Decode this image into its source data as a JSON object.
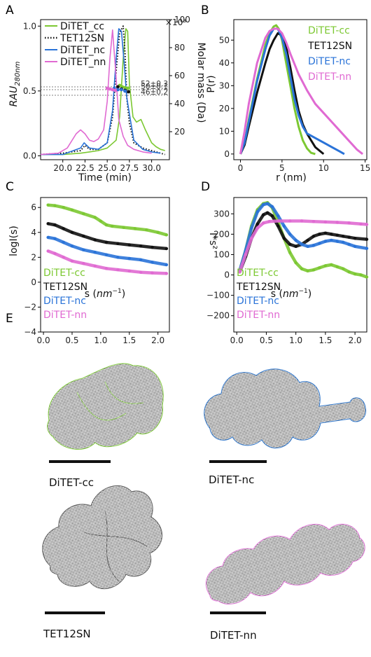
{
  "panel_labels": [
    "A",
    "B",
    "C",
    "D",
    "E"
  ],
  "colors": {
    "cc": "#7cc832",
    "sn": "#111111",
    "nc": "#2a73d8",
    "nn": "#e06ad2"
  },
  "chart_data": [
    {
      "id": "A",
      "type": "line",
      "title": "",
      "xlabel": "Time (min)",
      "ylabel": "RAU280nm",
      "ylabel_base": "RAU",
      "ylabel_sub": "280nm",
      "y2label": "Molar mass (Da)",
      "y2_multiplier": "×10³",
      "xlim": [
        17.5,
        32
      ],
      "ylim": [
        -0.03,
        1.05
      ],
      "y2lim": [
        0,
        100
      ],
      "xticks": [
        "20.0",
        "22.5",
        "25.0",
        "27.5",
        "30.0"
      ],
      "yticks": [
        "0.0",
        "0.5",
        "1.0"
      ],
      "y2ticks": [
        "20",
        "40",
        "60",
        "80",
        "100"
      ],
      "legend": [
        "DiTET_cc",
        "TET12SN",
        "DiTET_nc",
        "DiTET_nn"
      ],
      "legend_position": "top-left",
      "annotations": [
        "52±0.3",
        "50±0.1",
        "46±0.2"
      ],
      "annotation_levels": [
        52,
        50,
        46
      ],
      "series": [
        {
          "name": "DiTET_cc",
          "style": "solid",
          "x": [
            17.5,
            20,
            22,
            23,
            24,
            25,
            26,
            26.4,
            26.8,
            27.1,
            27.3,
            27.5,
            27.9,
            28.3,
            28.8,
            29.3,
            30,
            30.5,
            31,
            31.5
          ],
          "y": [
            0.01,
            0.01,
            0.02,
            0.03,
            0.04,
            0.06,
            0.12,
            0.3,
            0.75,
            0.98,
            0.96,
            0.55,
            0.3,
            0.26,
            0.28,
            0.2,
            0.1,
            0.07,
            0.05,
            0.04
          ]
        },
        {
          "name": "TET12SN",
          "style": "dotted",
          "x": [
            17.5,
            20,
            22,
            22.5,
            23,
            24,
            25,
            25.6,
            26,
            26.4,
            26.8,
            27,
            27.2,
            27.5,
            28,
            29,
            30,
            31,
            31.5
          ],
          "y": [
            0.01,
            0.02,
            0.04,
            0.08,
            0.05,
            0.05,
            0.1,
            0.3,
            0.65,
            0.95,
            1.0,
            0.8,
            0.45,
            0.25,
            0.1,
            0.06,
            0.04,
            0.02,
            0.01
          ]
        },
        {
          "name": "DiTET_nc",
          "style": "solid",
          "x": [
            17.5,
            20,
            22,
            22.4,
            23,
            24,
            25,
            25.6,
            26,
            26.3,
            26.6,
            26.9,
            27.2,
            27.6,
            28,
            29,
            30,
            31
          ],
          "y": [
            0.01,
            0.01,
            0.06,
            0.1,
            0.06,
            0.05,
            0.1,
            0.35,
            0.75,
            0.98,
            0.96,
            0.72,
            0.45,
            0.28,
            0.12,
            0.05,
            0.03,
            0.02
          ]
        },
        {
          "name": "DiTET_nn",
          "style": "solid",
          "x": [
            17.5,
            19.5,
            20.5,
            21.5,
            22,
            22.5,
            23,
            23.5,
            24,
            24.6,
            25,
            25.3,
            25.6,
            26,
            26.3,
            26.8,
            27.3,
            28,
            29,
            30
          ],
          "y": [
            0.01,
            0.02,
            0.06,
            0.17,
            0.2,
            0.17,
            0.12,
            0.11,
            0.13,
            0.2,
            0.42,
            0.75,
            0.97,
            0.6,
            0.28,
            0.15,
            0.08,
            0.05,
            0.03,
            0.02
          ]
        }
      ],
      "mass_series": [
        {
          "name": "DiTET_cc",
          "x": [
            26.4,
            26.7,
            27,
            27.3
          ],
          "y": [
            53,
            52,
            51.5,
            51
          ]
        },
        {
          "name": "TET12SN",
          "x": [
            26.2,
            26.6,
            27,
            27.4
          ],
          "y": [
            52,
            50.5,
            49.5,
            48.5
          ]
        },
        {
          "name": "DiTET_nc",
          "x": [
            25.8,
            26.2,
            26.6,
            27
          ],
          "y": [
            51,
            50,
            50,
            49
          ]
        },
        {
          "name": "DiTET_nn",
          "x": [
            25,
            25.3,
            25.6,
            25.9
          ],
          "y": [
            51,
            50.5,
            50,
            49.5
          ]
        }
      ]
    },
    {
      "id": "B",
      "type": "line",
      "title": "",
      "xlabel": "r (nm)",
      "ylabel": "P(r)",
      "xlim": [
        -0.8,
        15.2
      ],
      "ylim": [
        -2.5,
        59
      ],
      "xticks": [
        "0",
        "5",
        "10",
        "15"
      ],
      "yticks": [
        "0",
        "10",
        "20",
        "30",
        "40",
        "50"
      ],
      "legend": [
        "DiTET-cc",
        "TET12SN",
        "DiTET-nc",
        "DiTET-nn"
      ],
      "legend_position": "top-right",
      "series": [
        {
          "name": "DiTET-cc",
          "x": [
            0,
            0.5,
            1,
            2,
            3,
            3.5,
            4,
            4.3,
            4.6,
            5,
            5.5,
            6,
            6.5,
            7,
            7.5,
            8,
            8.5,
            9
          ],
          "y": [
            0,
            5,
            15,
            33,
            48,
            53,
            56,
            56.5,
            55,
            50,
            40,
            30,
            20,
            12,
            6,
            2.5,
            0.5,
            0
          ]
        },
        {
          "name": "TET12SN",
          "x": [
            0,
            0.5,
            1,
            2,
            3,
            3.5,
            4,
            4.5,
            5,
            5.5,
            6,
            6.5,
            7,
            7.5,
            8,
            8.5,
            9,
            9.5,
            10
          ],
          "y": [
            0,
            4,
            12,
            27,
            40,
            46,
            50,
            53,
            52,
            47,
            38,
            28,
            19,
            13,
            9,
            6,
            3,
            1.5,
            0
          ]
        },
        {
          "name": "DiTET-nc",
          "x": [
            0,
            0.5,
            1,
            2,
            3,
            3.5,
            4,
            4.5,
            5,
            5.5,
            6,
            6.5,
            7,
            7.5,
            8,
            9,
            10,
            11,
            12,
            12.5
          ],
          "y": [
            0,
            5,
            14,
            32,
            46,
            52,
            55,
            55,
            51,
            44,
            34,
            24,
            17,
            12,
            9,
            7,
            5,
            3,
            1,
            0
          ]
        },
        {
          "name": "DiTET-nn",
          "x": [
            0,
            0.5,
            1,
            2,
            3,
            3.5,
            4,
            4.5,
            5,
            5.5,
            6,
            7,
            8,
            9,
            10,
            11,
            12,
            13,
            14,
            14.7
          ],
          "y": [
            0,
            10,
            22,
            40,
            51,
            54,
            55,
            55,
            53,
            49,
            44,
            35,
            28,
            22,
            18,
            14,
            10,
            6,
            2,
            0
          ]
        }
      ]
    },
    {
      "id": "C",
      "type": "scatter",
      "title": "",
      "xlabel": "s (nm⁻¹)",
      "ylabel": "logI(s)",
      "xlim": [
        -0.05,
        2.2
      ],
      "ylim": [
        -4,
        6.8
      ],
      "xticks": [
        "0.0",
        "0.5",
        "1.0",
        "1.5",
        "2.0"
      ],
      "yticks": [
        "−4",
        "−2",
        "0",
        "2",
        "4",
        "6"
      ],
      "legend": [
        "DiTET-cc",
        "TET12SN",
        "DiTET-nc",
        "DiTET-nn"
      ],
      "legend_position": "bottom-left",
      "series": [
        {
          "name": "DiTET-cc",
          "x": [
            0.08,
            0.2,
            0.35,
            0.5,
            0.7,
            0.9,
            1.0,
            1.1,
            1.2,
            1.4,
            1.6,
            1.8,
            2.0,
            2.15
          ],
          "y": [
            6.2,
            6.15,
            6.0,
            5.8,
            5.5,
            5.2,
            4.9,
            4.6,
            4.5,
            4.4,
            4.3,
            4.2,
            4.0,
            3.8
          ]
        },
        {
          "name": "TET12SN",
          "x": [
            0.08,
            0.2,
            0.35,
            0.5,
            0.7,
            0.9,
            1.1,
            1.3,
            1.5,
            1.7,
            1.9,
            2.15
          ],
          "y": [
            4.7,
            4.6,
            4.3,
            4.0,
            3.7,
            3.4,
            3.2,
            3.1,
            3.0,
            2.9,
            2.8,
            2.7
          ]
        },
        {
          "name": "DiTET-nc",
          "x": [
            0.08,
            0.2,
            0.35,
            0.5,
            0.7,
            0.9,
            1.1,
            1.3,
            1.5,
            1.7,
            1.9,
            2.15
          ],
          "y": [
            3.6,
            3.5,
            3.2,
            2.9,
            2.6,
            2.4,
            2.2,
            2.0,
            1.9,
            1.8,
            1.6,
            1.4
          ]
        },
        {
          "name": "DiTET-nn",
          "x": [
            0.08,
            0.2,
            0.35,
            0.5,
            0.7,
            0.9,
            1.1,
            1.3,
            1.5,
            1.7,
            1.9,
            2.15
          ],
          "y": [
            2.5,
            2.3,
            2.0,
            1.7,
            1.5,
            1.3,
            1.1,
            1.0,
            0.9,
            0.8,
            0.75,
            0.7
          ]
        }
      ]
    },
    {
      "id": "D",
      "type": "scatter",
      "title": "",
      "xlabel": "s (nm⁻¹)",
      "ylabel": "I*s²",
      "xlim": [
        -0.05,
        2.2
      ],
      "ylim": [
        -280,
        380
      ],
      "xticks": [
        "0.0",
        "0.5",
        "1.0",
        "1.5",
        "2.0"
      ],
      "yticks": [
        "−200",
        "−100",
        "0",
        "100",
        "200",
        "300"
      ],
      "legend": [
        "DiTET-cc",
        "TET12SN",
        "DiTET-nc",
        "DiTET-nn"
      ],
      "legend_position": "bottom-left",
      "series": [
        {
          "name": "DiTET-cc",
          "x": [
            0.05,
            0.15,
            0.25,
            0.35,
            0.45,
            0.52,
            0.6,
            0.7,
            0.8,
            0.9,
            1.0,
            1.1,
            1.2,
            1.3,
            1.4,
            1.5,
            1.6,
            1.7,
            1.8,
            1.9,
            2.0,
            2.1,
            2.2
          ],
          "y": [
            20,
            120,
            240,
            320,
            350,
            355,
            330,
            260,
            180,
            110,
            60,
            30,
            20,
            25,
            35,
            45,
            50,
            40,
            30,
            15,
            5,
            0,
            -10
          ]
        },
        {
          "name": "TET12SN",
          "x": [
            0.05,
            0.15,
            0.25,
            0.35,
            0.45,
            0.52,
            0.6,
            0.7,
            0.8,
            0.9,
            1.0,
            1.1,
            1.2,
            1.3,
            1.4,
            1.5,
            1.6,
            1.7,
            1.8,
            1.9,
            2.0,
            2.2
          ],
          "y": [
            15,
            90,
            180,
            250,
            295,
            305,
            290,
            240,
            180,
            150,
            140,
            150,
            170,
            190,
            200,
            205,
            200,
            195,
            190,
            185,
            180,
            175
          ]
        },
        {
          "name": "DiTET-nc",
          "x": [
            0.05,
            0.15,
            0.25,
            0.35,
            0.45,
            0.52,
            0.6,
            0.7,
            0.8,
            0.9,
            1.0,
            1.1,
            1.2,
            1.3,
            1.4,
            1.5,
            1.6,
            1.7,
            1.8,
            1.9,
            2.0,
            2.2
          ],
          "y": [
            20,
            120,
            230,
            310,
            345,
            350,
            335,
            290,
            240,
            200,
            170,
            150,
            140,
            145,
            155,
            165,
            170,
            165,
            160,
            150,
            140,
            130
          ]
        },
        {
          "name": "DiTET-nn",
          "x": [
            0.05,
            0.15,
            0.25,
            0.35,
            0.45,
            0.55,
            0.7,
            0.9,
            1.1,
            1.3,
            1.5,
            1.7,
            1.9,
            2.1,
            2.2
          ],
          "y": [
            15,
            100,
            180,
            230,
            255,
            262,
            265,
            265,
            265,
            262,
            260,
            258,
            255,
            250,
            248
          ]
        }
      ]
    }
  ],
  "models": [
    {
      "label": "DiTET-cc",
      "color": "#8acd4c"
    },
    {
      "label": "DiTET-nc",
      "color": "#3c7fcf"
    },
    {
      "label": "TET12SN",
      "color": "#6a6a6a"
    },
    {
      "label": "DiTET-nn",
      "color": "#e07fd8"
    }
  ]
}
